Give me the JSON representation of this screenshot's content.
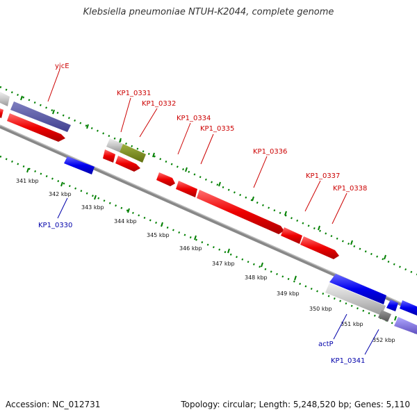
{
  "title": "Klebsiella pneumoniae NTUH-K2044, complete genome",
  "accession": "Accession: NC_012731",
  "topology": "Topology: circular; Length: 5,248,520 bp; Genes: 5,110",
  "kbp_labels": [
    "341 kbp",
    "342 kbp",
    "343 kbp",
    "344 kbp",
    "345 kbp",
    "346 kbp",
    "347 kbp",
    "348 kbp",
    "349 kbp",
    "350 kbp",
    "351 kbp",
    "352 kbp"
  ],
  "genes_forward": [
    "yjcE",
    "KP1_0331",
    "KP1_0332",
    "KP1_0334",
    "KP1_0335",
    "KP1_0336",
    "KP1_0337",
    "KP1_0338"
  ],
  "genes_reverse": [
    "KP1_0330",
    "actP",
    "KP1_0341"
  ],
  "colors": {
    "forward_gene": "#ff0000",
    "reverse_gene": "#0000ff",
    "tick": "#008000",
    "backbone": "#888888"
  }
}
